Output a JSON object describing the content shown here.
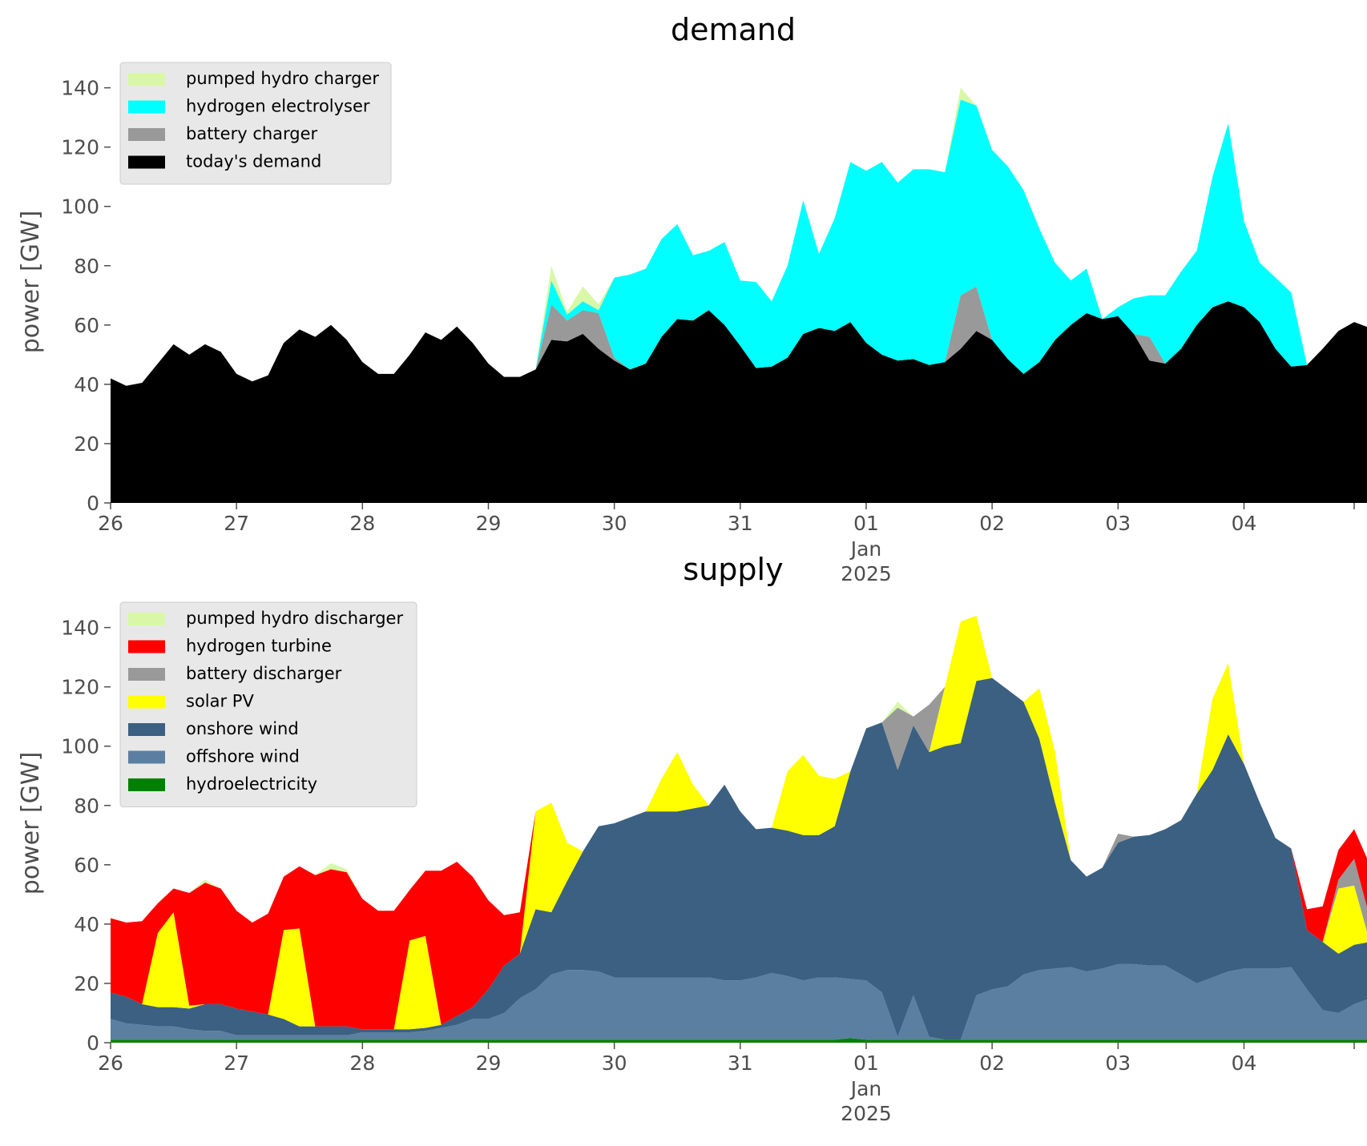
{
  "chart_data": [
    {
      "type": "area",
      "stacked": true,
      "title": "demand",
      "ylabel": "power [GW]",
      "xlabel": "",
      "ylim": [
        0,
        148
      ],
      "yticks": [
        0,
        20,
        40,
        60,
        80,
        100,
        120,
        140
      ],
      "grid": false,
      "legend": "top-left",
      "x_start": "2024-12-26",
      "x_end": "2025-01-04 21:00",
      "x_step_hours": 3,
      "x_ticks": [
        {
          "date": "2024-12-26",
          "label": "26"
        },
        {
          "date": "2024-12-27",
          "label": "27"
        },
        {
          "date": "2024-12-28",
          "label": "28"
        },
        {
          "date": "2024-12-29",
          "label": "29"
        },
        {
          "date": "2024-12-30",
          "label": "30"
        },
        {
          "date": "2024-12-31",
          "label": "31"
        },
        {
          "date": "2025-01-01",
          "label": "01",
          "sublabel_1": "Jan",
          "sublabel_2": "2025"
        },
        {
          "date": "2025-01-02",
          "label": "02"
        },
        {
          "date": "2025-01-03",
          "label": "03"
        },
        {
          "date": "2025-01-04",
          "label": "04"
        }
      ],
      "series": [
        {
          "name": "today's demand",
          "color": "#000000",
          "values": [
            42,
            39.5,
            40.5,
            47,
            53.5,
            50,
            53.5,
            51,
            43.5,
            41,
            43,
            54,
            58.5,
            56,
            60,
            55,
            47.5,
            43.5,
            43.5,
            50,
            57.5,
            55,
            59.5,
            54,
            47,
            42.5,
            42.5,
            45,
            55,
            54.5,
            57,
            52,
            48,
            45,
            47,
            56,
            62,
            61.5,
            65,
            60,
            53,
            45.5,
            46,
            49,
            57,
            59,
            58,
            61,
            54,
            50,
            48,
            48.5,
            46.5,
            47.5,
            52,
            58,
            55,
            48.5,
            43.5,
            47.5,
            55,
            60,
            64,
            62,
            63,
            57,
            48,
            47,
            52,
            60,
            66,
            68,
            66,
            61,
            52,
            46,
            46.5,
            52,
            58,
            61,
            59,
            63,
            57,
            52
          ]
        },
        {
          "name": "battery charger",
          "color": "#999999",
          "values": [
            0,
            0,
            0,
            0,
            0,
            0,
            0,
            0,
            0,
            0,
            0,
            0,
            0,
            0,
            0,
            0,
            0,
            0,
            0,
            0,
            0,
            0,
            0,
            0,
            0,
            0,
            0,
            0,
            12,
            7,
            8,
            12,
            1,
            0,
            0,
            0,
            0,
            0,
            0,
            0,
            0,
            0,
            0,
            0,
            0,
            0,
            0,
            0,
            0,
            0,
            0,
            0,
            0,
            0,
            18,
            15,
            0,
            0,
            0,
            0,
            0,
            0,
            0,
            0,
            0,
            0,
            8,
            0,
            0,
            0,
            0,
            0,
            0,
            0,
            0,
            0,
            0,
            0,
            0,
            0,
            0,
            0,
            0,
            0
          ]
        },
        {
          "name": "hydrogen electrolyser",
          "color": "#00ffff",
          "values": [
            0,
            0,
            0,
            0,
            0,
            0,
            0,
            0,
            0,
            0,
            0,
            0,
            0,
            0,
            0,
            0,
            0,
            0,
            0,
            0,
            0,
            0,
            0,
            0,
            0,
            0,
            0,
            0,
            8,
            2,
            3,
            1,
            27,
            32,
            32,
            33,
            32,
            22,
            20,
            28,
            22,
            29,
            22,
            31,
            45,
            25,
            38,
            54,
            58,
            65,
            60,
            64,
            66,
            64,
            66,
            61,
            64,
            65,
            62,
            45,
            26,
            15,
            15,
            0,
            3,
            12,
            14,
            23,
            26,
            25,
            44,
            60,
            29,
            20,
            24,
            25,
            0,
            0,
            0,
            0,
            0,
            0,
            0,
            0
          ]
        },
        {
          "name": "pumped hydro charger",
          "color": "#d8f8a8",
          "values": [
            0,
            0,
            0,
            0,
            0,
            0,
            0,
            0,
            0,
            0,
            0,
            0,
            0,
            0,
            0,
            0,
            0,
            0,
            0,
            0,
            0,
            0,
            0,
            0,
            0,
            0,
            0,
            0,
            5,
            1,
            5,
            2,
            0,
            0,
            0,
            0,
            0,
            0,
            0,
            0,
            0,
            0,
            0,
            0,
            0,
            0,
            0,
            0,
            0,
            0,
            0,
            0,
            0,
            0,
            4,
            0,
            0,
            0,
            0,
            0,
            0,
            0,
            0,
            0,
            0,
            0,
            0,
            0,
            0,
            0,
            0,
            0,
            0,
            0,
            0,
            0,
            0,
            0,
            0,
            0,
            0,
            0,
            0,
            0
          ]
        }
      ]
    },
    {
      "type": "area",
      "stacked": true,
      "title": "supply",
      "ylabel": "power [GW]",
      "xlabel": "",
      "ylim": [
        0,
        148
      ],
      "yticks": [
        0,
        20,
        40,
        60,
        80,
        100,
        120,
        140
      ],
      "grid": false,
      "legend": "top-left",
      "x_start": "2024-12-26",
      "x_end": "2025-01-04 21:00",
      "x_step_hours": 3,
      "x_ticks": [
        {
          "date": "2024-12-26",
          "label": "26"
        },
        {
          "date": "2024-12-27",
          "label": "27"
        },
        {
          "date": "2024-12-28",
          "label": "28"
        },
        {
          "date": "2024-12-29",
          "label": "29"
        },
        {
          "date": "2024-12-30",
          "label": "30"
        },
        {
          "date": "2024-12-31",
          "label": "31"
        },
        {
          "date": "2025-01-01",
          "label": "01",
          "sublabel_1": "Jan",
          "sublabel_2": "2025"
        },
        {
          "date": "2025-01-02",
          "label": "02"
        },
        {
          "date": "2025-01-03",
          "label": "03"
        },
        {
          "date": "2025-01-04",
          "label": "04"
        }
      ],
      "series": [
        {
          "name": "hydroelectricity",
          "color": "#008000",
          "values": [
            1,
            1,
            1,
            1,
            1,
            1,
            1,
            1,
            1,
            1,
            1,
            1,
            1,
            1,
            1,
            1,
            1,
            1,
            1,
            1,
            1,
            1,
            1,
            1,
            1,
            1,
            1,
            1,
            1,
            1,
            1,
            1,
            1,
            1,
            1,
            1,
            1,
            1,
            1,
            1,
            1,
            1,
            1,
            1,
            1,
            1,
            1,
            1.5,
            1,
            1,
            1,
            1,
            1,
            1,
            1,
            1,
            1,
            1,
            1,
            1,
            1,
            1,
            1,
            1,
            1,
            1,
            1,
            1,
            1,
            1,
            1,
            1,
            1,
            1,
            1,
            1,
            1,
            1,
            1,
            1,
            1,
            1,
            1,
            1
          ]
        },
        {
          "name": "offshore wind",
          "color": "#5b7fa0",
          "values": [
            7,
            5.5,
            5,
            4.5,
            4.5,
            3.5,
            3,
            3,
            1.5,
            1.5,
            1.5,
            1.5,
            1.5,
            1.5,
            1.5,
            1.5,
            2.5,
            2.5,
            2.5,
            2.5,
            3,
            4,
            5,
            7,
            7,
            9,
            14,
            17,
            22,
            23.5,
            23.5,
            23,
            21,
            21,
            21,
            21,
            21,
            21,
            21,
            20,
            20,
            21,
            22.5,
            21.5,
            20,
            21,
            21,
            20,
            20,
            16,
            1,
            15,
            1,
            0,
            0,
            15,
            17,
            18,
            22,
            23.5,
            24,
            24.5,
            23,
            24,
            25.5,
            25.5,
            25,
            25,
            22,
            19,
            21,
            23,
            24,
            24,
            24,
            24.5,
            17,
            10,
            9,
            12,
            14,
            12,
            10,
            9.5
          ]
        },
        {
          "name": "onshore wind",
          "color": "#3b6082",
          "values": [
            9,
            9,
            7,
            6.5,
            6.5,
            7,
            9,
            9,
            9,
            8,
            7,
            5.5,
            3,
            3,
            3,
            3,
            1,
            1,
            1,
            1,
            1,
            1,
            3,
            4,
            10,
            16,
            15,
            27,
            21,
            30,
            40,
            49,
            52,
            54,
            56,
            56,
            56,
            57,
            58,
            66,
            57,
            50,
            49,
            49,
            49,
            48,
            51,
            70,
            85,
            91,
            90,
            91,
            96,
            99,
            100,
            106,
            105,
            100,
            92,
            78,
            56,
            36,
            32,
            34,
            41,
            43,
            44,
            46,
            52,
            64,
            70,
            80,
            69,
            56,
            44,
            40,
            20,
            23,
            20,
            20,
            19,
            18,
            20,
            20
          ]
        },
        {
          "name": "solar PV",
          "color": "#ffff00",
          "values": [
            0,
            0,
            0,
            25,
            32,
            1,
            0,
            0,
            0,
            0,
            0,
            30,
            33,
            0,
            0,
            0,
            0,
            0,
            0,
            30,
            31,
            0,
            0,
            0,
            0,
            0,
            0,
            33,
            37,
            13,
            0,
            0,
            0,
            0,
            0,
            11,
            20,
            8,
            0,
            0,
            0,
            0,
            0,
            20,
            27,
            20,
            16,
            0,
            0,
            0,
            0,
            0,
            0,
            20,
            41,
            22,
            0,
            0,
            0,
            17,
            17,
            0,
            0,
            0,
            0,
            0,
            0,
            0,
            0,
            0,
            24,
            24,
            0,
            0,
            0,
            0,
            0,
            0,
            22,
            20,
            0,
            0,
            0,
            0
          ]
        },
        {
          "name": "battery discharger",
          "color": "#999999",
          "values": [
            0,
            0,
            0,
            0,
            0,
            0,
            0,
            0,
            0,
            0,
            0,
            0,
            0,
            0,
            0,
            0,
            0,
            0,
            0,
            0,
            0,
            0,
            0,
            0,
            0,
            0,
            0,
            0,
            0,
            0,
            0,
            0,
            0,
            0,
            0,
            0,
            0,
            0,
            0,
            0,
            0,
            0,
            0,
            0,
            0,
            0,
            0,
            0,
            0,
            0,
            21,
            3,
            16,
            0,
            0,
            0,
            0,
            0,
            0,
            0,
            0,
            0,
            0,
            0,
            3,
            0,
            0,
            0,
            0,
            0,
            0,
            0,
            0,
            0,
            0,
            0,
            0,
            0,
            3,
            9,
            8,
            12,
            15,
            10
          ]
        },
        {
          "name": "hydrogen turbine",
          "color": "#ff0000",
          "values": [
            25,
            25,
            28,
            10,
            8,
            38,
            41,
            39,
            33,
            30,
            34,
            18,
            21,
            51,
            53,
            52,
            44,
            40,
            40,
            17,
            22,
            52,
            52,
            44,
            30,
            17,
            14,
            0,
            0,
            0,
            0,
            0,
            0,
            0,
            0,
            0,
            0,
            0,
            0,
            0,
            0,
            0,
            0,
            0,
            0,
            0,
            0,
            0,
            0,
            0,
            0,
            0,
            0,
            0,
            0,
            0,
            0,
            0,
            0,
            0,
            0,
            0,
            0,
            0,
            0,
            0,
            0,
            0,
            0,
            0,
            0,
            0,
            0,
            0,
            0,
            0,
            7,
            12,
            10,
            10,
            18,
            20,
            12,
            12
          ]
        },
        {
          "name": "pumped hydro discharger",
          "color": "#d8f8a8",
          "values": [
            0,
            0,
            0,
            0,
            0,
            0,
            1,
            0,
            0,
            0,
            0,
            0,
            0,
            0,
            2,
            1,
            0,
            0,
            0,
            0,
            0,
            0,
            0,
            0,
            0,
            0,
            0,
            0,
            0,
            0,
            0,
            0,
            0,
            0,
            0,
            0,
            0,
            0,
            0,
            0,
            0,
            0,
            0,
            0,
            0,
            0,
            0,
            0,
            0,
            0,
            2,
            0,
            0,
            0,
            0,
            0,
            0,
            0,
            0,
            0,
            0,
            0,
            0,
            0,
            0,
            0,
            0,
            0,
            0,
            0,
            0,
            0,
            0,
            0,
            0,
            0,
            0,
            0,
            0,
            0,
            0,
            0,
            0,
            0
          ]
        }
      ]
    }
  ],
  "legends": [
    [
      "pumped hydro charger",
      "hydrogen electrolyser",
      "battery charger",
      "today's demand"
    ],
    [
      "pumped hydro discharger",
      "hydrogen turbine",
      "battery discharger",
      "solar PV",
      "onshore wind",
      "offshore wind",
      "hydroelectricity"
    ]
  ]
}
